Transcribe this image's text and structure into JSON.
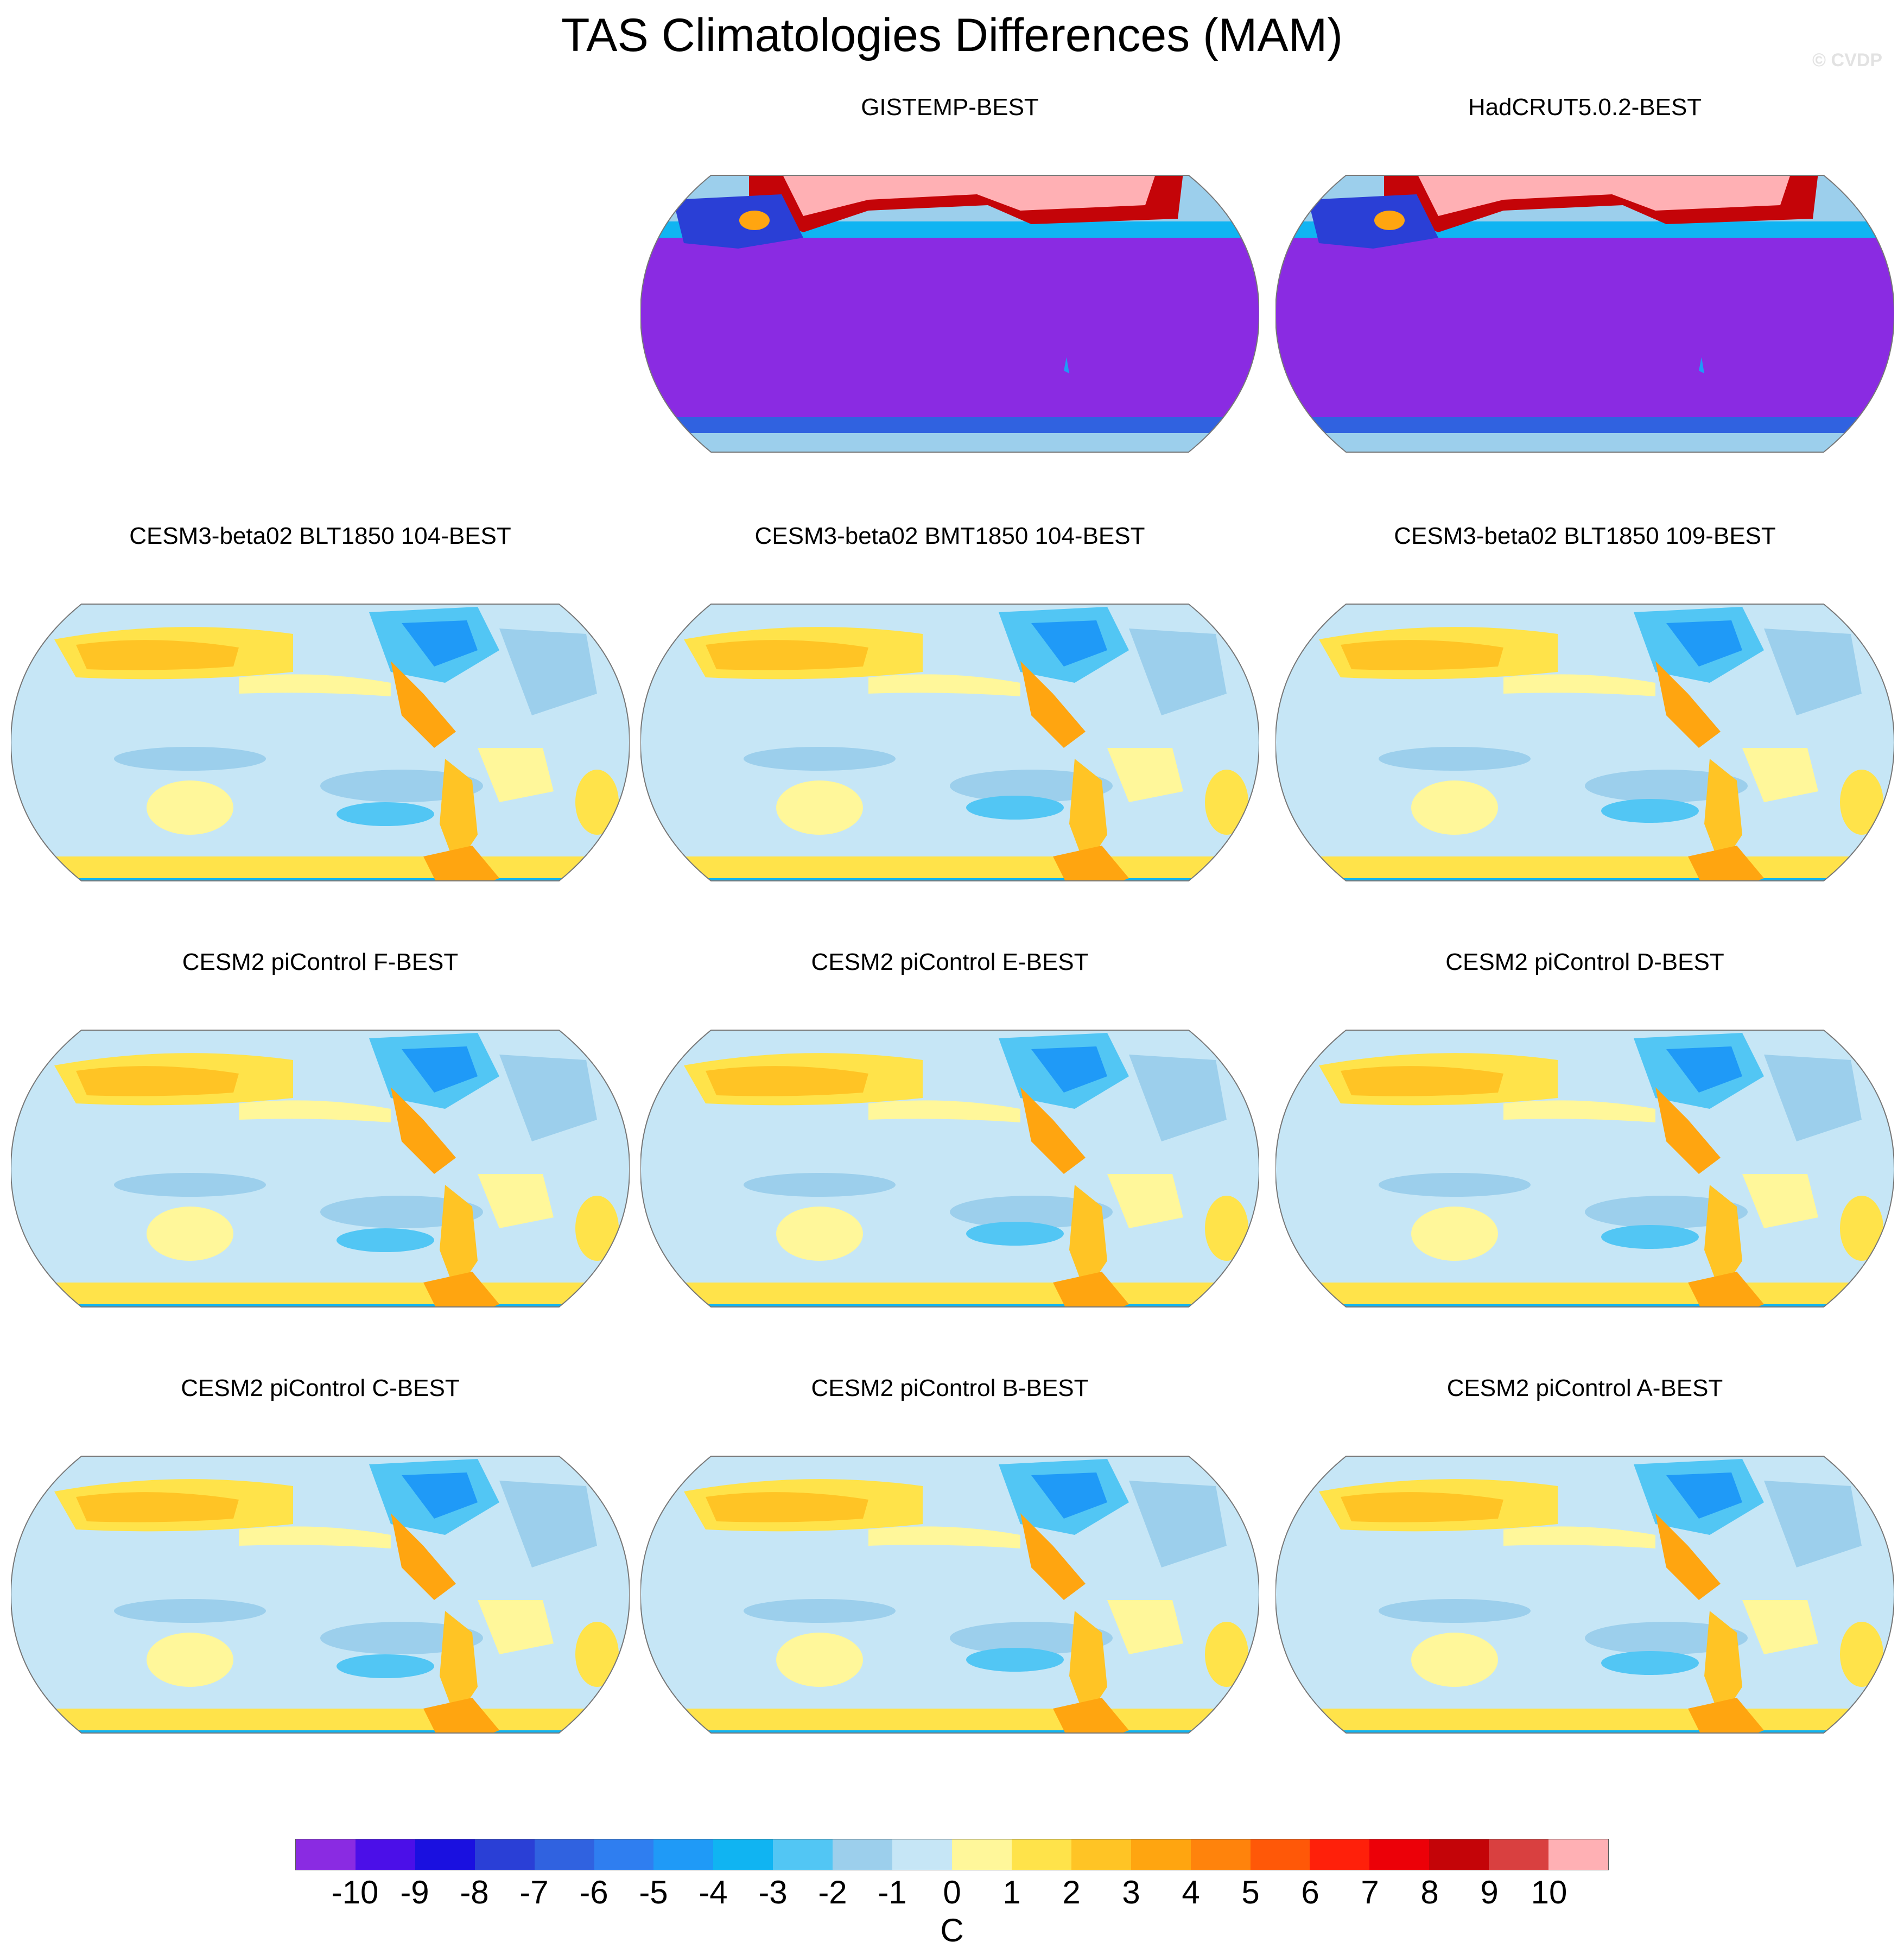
{
  "title": "TAS Climatologies Differences (MAM)",
  "watermark": "© CVDP",
  "panels": [
    {
      "title": "GISTEMP-BEST",
      "style": "obs"
    },
    {
      "title": "HadCRUT5.0.2-BEST",
      "style": "obs"
    },
    {
      "title": "CESM3-beta02 BLT1850 104-BEST",
      "style": "model"
    },
    {
      "title": "CESM3-beta02 BMT1850 104-BEST",
      "style": "model"
    },
    {
      "title": "CESM3-beta02 BLT1850 109-BEST",
      "style": "model"
    },
    {
      "title": "CESM2 piControl F-BEST",
      "style": "model"
    },
    {
      "title": "CESM2 piControl E-BEST",
      "style": "model"
    },
    {
      "title": "CESM2 piControl D-BEST",
      "style": "model"
    },
    {
      "title": "CESM2 piControl C-BEST",
      "style": "model"
    },
    {
      "title": "CESM2 piControl B-BEST",
      "style": "model"
    },
    {
      "title": "CESM2 piControl A-BEST",
      "style": "model"
    }
  ],
  "colorbar": {
    "units": "C",
    "ticks": [
      "-10",
      "-9",
      "-8",
      "-7",
      "-6",
      "-5",
      "-4",
      "-3",
      "-2",
      "-1",
      "0",
      "1",
      "2",
      "3",
      "4",
      "5",
      "6",
      "7",
      "8",
      "9",
      "10"
    ],
    "colors": [
      "#8a2be2",
      "#4b0fe8",
      "#1a10e0",
      "#2a3fd6",
      "#3062e0",
      "#2f7ef0",
      "#1f9af7",
      "#10b4f2",
      "#52c6f4",
      "#9ccfec",
      "#c6e6f6",
      "#fff79a",
      "#ffe34a",
      "#ffc425",
      "#ffa510",
      "#ff830c",
      "#ff5808",
      "#ff200a",
      "#ec0008",
      "#c40408",
      "#d94040",
      "#ffb0b4"
    ]
  }
}
